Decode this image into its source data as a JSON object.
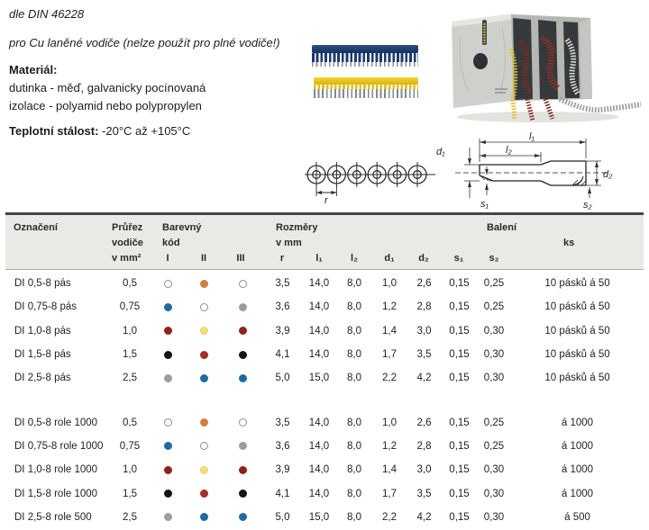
{
  "intro": {
    "standard": "dle DIN 46228",
    "subtitle": "pro Cu laněné vodiče (nelze použít pro plné vodiče!)",
    "material_label": "Materiál:",
    "material_line1": "dutinka - měď, galvanicky pocínovaná",
    "material_line2": "izolace - polyamid nebo polypropylen",
    "temp_label": "Teplotní stálost:",
    "temp_value": " -20°C až +105°C"
  },
  "drawing": {
    "labels": {
      "r": "r",
      "l1": "l₁",
      "l2": "l₂",
      "d1": "d₁",
      "d2": "d₂",
      "s1": "s₁",
      "s2": "s₂"
    }
  },
  "table": {
    "headers": {
      "oznaceni": "Označení",
      "prurez": [
        "Průřez",
        "vodiče",
        "v mm²"
      ],
      "barevny": [
        "Barevný",
        "kód"
      ],
      "color_cols": [
        "I",
        "II",
        "III"
      ],
      "rozmery": [
        "Rozměry",
        "v mm"
      ],
      "dim_cols": [
        "r",
        "l₁",
        "l₂",
        "d₁",
        "d₂",
        "s₁",
        "s₂"
      ],
      "baleni": "Balení",
      "ks": "ks"
    },
    "colors": {
      "white": {
        "fill": "#ffffff",
        "border": "#8f8f8f"
      },
      "orange": {
        "fill": "#cf803f",
        "border": "#cf803f"
      },
      "blue": {
        "fill": "#1f6aa5",
        "border": "#1f6aa5"
      },
      "gray": {
        "fill": "#9d9d9d",
        "border": "#9d9d9d"
      },
      "darkred": {
        "fill": "#8c241e",
        "border": "#8c241e"
      },
      "red": {
        "fill": "#a32e26",
        "border": "#a32e26"
      },
      "yellow": {
        "fill": "#f0e17d",
        "border": "#e5d25e"
      },
      "black": {
        "fill": "#151515",
        "border": "#151515"
      }
    },
    "groups": [
      {
        "rows": [
          {
            "name": "DI 0,5-8 pás",
            "prurez": "0,5",
            "dots": [
              "white",
              "orange",
              "white"
            ],
            "dims": [
              "3,5",
              "14,0",
              "8,0",
              "1,0",
              "2,6",
              "0,15",
              "0,25"
            ],
            "ks": "10 pásků á 50"
          },
          {
            "name": "DI 0,75-8 pás",
            "prurez": "0,75",
            "dots": [
              "blue",
              "white",
              "gray"
            ],
            "dims": [
              "3,6",
              "14,0",
              "8,0",
              "1,2",
              "2,8",
              "0,15",
              "0,25"
            ],
            "ks": "10 pásků á 50"
          },
          {
            "name": "DI 1,0-8 pás",
            "prurez": "1,0",
            "dots": [
              "darkred",
              "yellow",
              "darkred"
            ],
            "dims": [
              "3,9",
              "14,0",
              "8,0",
              "1,4",
              "3,0",
              "0,15",
              "0,30"
            ],
            "ks": "10 pásků á 50"
          },
          {
            "name": "DI 1,5-8 pás",
            "prurez": "1,5",
            "dots": [
              "black",
              "red",
              "black"
            ],
            "dims": [
              "4,1",
              "14,0",
              "8,0",
              "1,7",
              "3,5",
              "0,15",
              "0,30"
            ],
            "ks": "10 pásků á 50"
          },
          {
            "name": "DI 2,5-8 pás",
            "prurez": "2,5",
            "dots": [
              "gray",
              "blue",
              "blue"
            ],
            "dims": [
              "5,0",
              "15,0",
              "8,0",
              "2,2",
              "4,2",
              "0,15",
              "0,30"
            ],
            "ks": "10 pásků á 50"
          }
        ]
      },
      {
        "rows": [
          {
            "name": "DI 0,5-8 role 1000",
            "prurez": "0,5",
            "dots": [
              "white",
              "orange",
              "white"
            ],
            "dims": [
              "3,5",
              "14,0",
              "8,0",
              "1,0",
              "2,6",
              "0,15",
              "0,25"
            ],
            "ks": "á 1000"
          },
          {
            "name": "DI 0,75-8 role 1000",
            "prurez": "0,75",
            "dots": [
              "blue",
              "white",
              "gray"
            ],
            "dims": [
              "3,6",
              "14,0",
              "8,0",
              "1,2",
              "2,8",
              "0,15",
              "0,25"
            ],
            "ks": "á 1000"
          },
          {
            "name": "DI 1,0-8 role 1000",
            "prurez": "1,0",
            "dots": [
              "darkred",
              "yellow",
              "darkred"
            ],
            "dims": [
              "3,9",
              "14,0",
              "8,0",
              "1,4",
              "3,0",
              "0,15",
              "0,30"
            ],
            "ks": "á 1000"
          },
          {
            "name": "DI 1,5-8 role 1000",
            "prurez": "1,5",
            "dots": [
              "black",
              "red",
              "black"
            ],
            "dims": [
              "4,1",
              "14,0",
              "8,0",
              "1,7",
              "3,5",
              "0,15",
              "0,30"
            ],
            "ks": "á 1000"
          },
          {
            "name": "DI 2,5-8 role 500",
            "prurez": "2,5",
            "dots": [
              "gray",
              "blue",
              "blue"
            ],
            "dims": [
              "5,0",
              "15,0",
              "8,0",
              "2,2",
              "4,2",
              "0,15",
              "0,30"
            ],
            "ks": "á 500"
          }
        ]
      }
    ]
  }
}
